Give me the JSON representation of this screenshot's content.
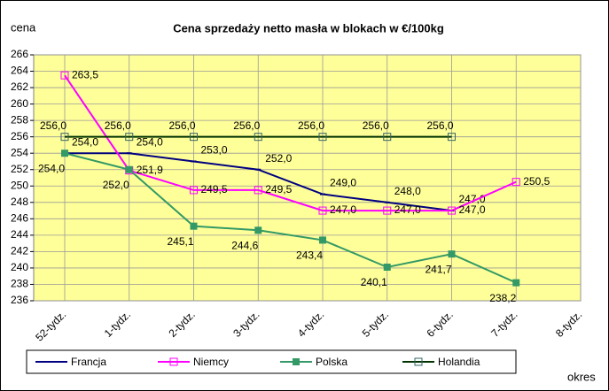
{
  "chart_data": {
    "type": "line",
    "title": "Cena sprzedaży netto masła w blokach w €/100kg",
    "y_label": "cena",
    "x_label": "okres",
    "categories": [
      "52-tydz.",
      "1-tydz.",
      "2-tydz.",
      "3-tydz.",
      "4-tydz.",
      "5-tydz.",
      "6-tydz.",
      "7-tydz.",
      "8-tydz."
    ],
    "ylim": [
      236,
      266
    ],
    "yticks": [
      236,
      238,
      240,
      242,
      244,
      246,
      248,
      250,
      252,
      254,
      256,
      258,
      260,
      262,
      264,
      266
    ],
    "grid": true,
    "legend": "bottom",
    "series": [
      {
        "name": "Francja",
        "color": "#000080",
        "values": [
          254.0,
          254.0,
          253.0,
          252.0,
          249.0,
          248.0,
          247.0,
          null,
          null
        ],
        "value_labels": [
          "254,0",
          "254,0",
          "253,0",
          "252,0",
          "249,0",
          "248,0",
          "247,0",
          null,
          null
        ]
      },
      {
        "name": "Niemcy",
        "color": "#ff00ff",
        "values": [
          263.5,
          251.9,
          249.5,
          249.5,
          247.0,
          247.0,
          247.0,
          250.5,
          null
        ],
        "value_labels": [
          "263,5",
          "251,9",
          "249,5",
          "249,5",
          "247,0",
          "247,0",
          "247,0",
          "250,5",
          null
        ]
      },
      {
        "name": "Polska",
        "color": "#339966",
        "values": [
          254.0,
          252.0,
          245.1,
          244.6,
          243.4,
          240.1,
          241.7,
          238.2,
          null
        ],
        "value_labels": [
          "254,0",
          "252,0",
          "245,1",
          "244,6",
          "243,4",
          "240,1",
          "241,7",
          "238,2",
          null
        ]
      },
      {
        "name": "Holandia",
        "color": "#003300",
        "values": [
          256.0,
          256.0,
          256.0,
          256.0,
          256.0,
          256.0,
          256.0,
          null,
          null
        ],
        "value_labels": [
          "256,0",
          "256,0",
          "256,0",
          "256,0",
          "256,0",
          "256,0",
          "256,0",
          null,
          null
        ]
      }
    ]
  }
}
